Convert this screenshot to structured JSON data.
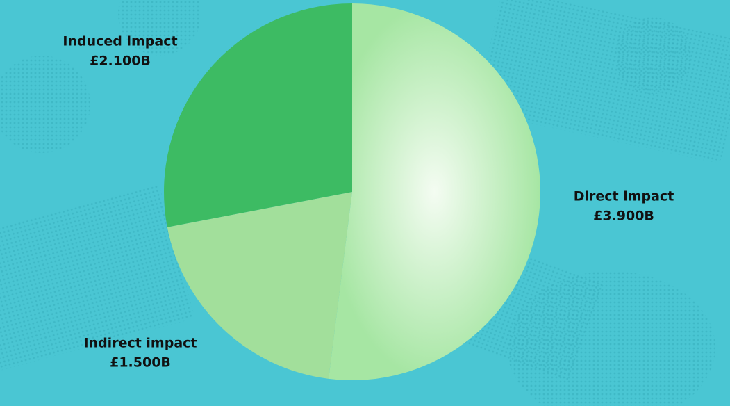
{
  "chart_data": {
    "type": "pie",
    "categories": [
      "Direct impact",
      "Indirect impact",
      "Induced impact"
    ],
    "values": [
      3.9,
      1.5,
      2.1
    ],
    "value_labels": [
      "£3.900B",
      "£1.500B",
      "£2.100B"
    ],
    "colors": [
      "#a6e6a3",
      "#a2df9b",
      "#3dbb63"
    ]
  }
}
